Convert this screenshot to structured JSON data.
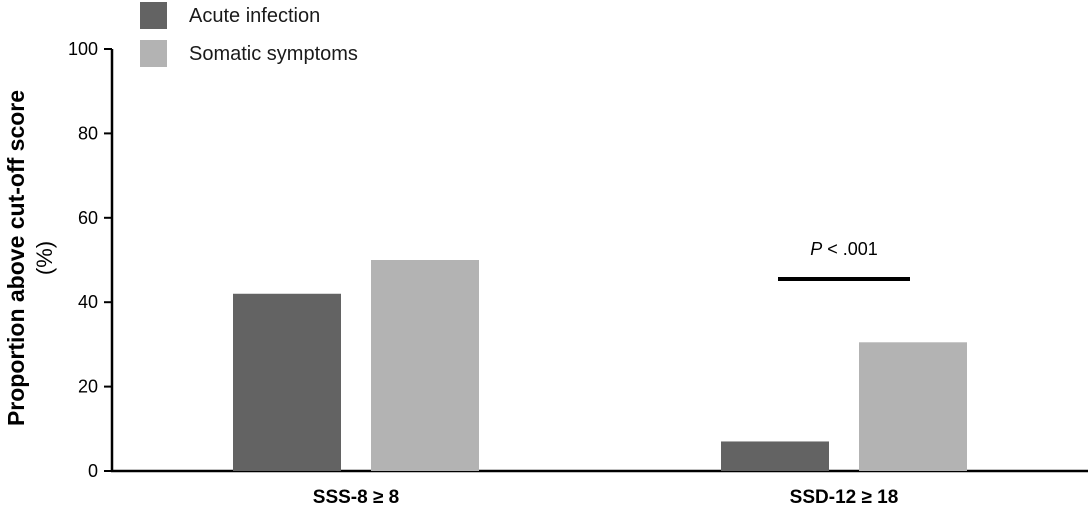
{
  "chart_data": {
    "type": "bar",
    "ylabel_line1": "Proportion above cut-off score",
    "ylabel_line2": "(%)",
    "ylim": [
      0,
      100
    ],
    "yticks": [
      0,
      20,
      40,
      60,
      80,
      100
    ],
    "categories": [
      "SSS-8 ≥ 8",
      "SSD-12 ≥ 18"
    ],
    "series": [
      {
        "name": "Acute infection",
        "color": "#636363",
        "values": [
          42,
          7
        ]
      },
      {
        "name": "Somatic symptoms",
        "color": "#b3b3b3",
        "values": [
          50,
          30.5
        ]
      }
    ],
    "legend_position": "top-left",
    "grid": false,
    "annotation": {
      "category_index": 1,
      "italic_part": "P",
      "rest": " < .001",
      "level": 45.5
    }
  }
}
